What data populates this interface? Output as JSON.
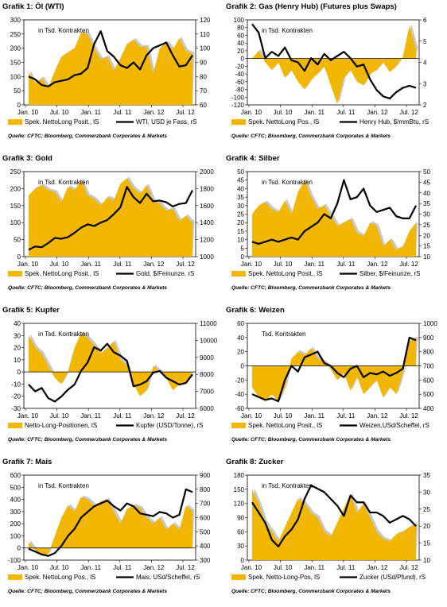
{
  "colors": {
    "fill": "#F2B705",
    "grey": "#C8C8C8",
    "line": "#000000"
  },
  "chart_data": [
    {
      "type": "area",
      "title_prefix": "Grafik 1:",
      "title": "Öl (WTI)",
      "inner_label": "in Tsd. Kontrakten",
      "x_ticks": [
        "Jan. 10",
        "Jul. 10",
        "Jan. 11",
        "Jul. 11",
        "Jan. 12",
        "Jul. 12"
      ],
      "ylim_left": [
        0,
        300
      ],
      "yticks_left": [
        0,
        50,
        100,
        150,
        200,
        250,
        300
      ],
      "ylim_right": [
        60,
        120
      ],
      "yticks_right": [
        60,
        70,
        80,
        90,
        100,
        110,
        120
      ],
      "series": [
        {
          "name": "Spek. NettoLong Posit., lS",
          "axis": "left",
          "values": [
            115,
            75,
            95,
            60,
            120,
            170,
            185,
            200,
            255,
            250,
            200,
            160,
            170,
            120,
            165,
            215,
            230,
            205,
            205,
            110,
            200,
            220,
            195,
            235,
            190,
            180
          ]
        },
        {
          "name": "WTI, USD je Fass, rS",
          "axis": "right",
          "values": [
            80,
            78,
            74,
            73,
            76,
            77,
            78,
            81,
            82,
            86,
            103,
            112,
            98,
            94,
            88,
            86,
            90,
            85,
            95,
            100,
            102,
            104,
            95,
            87,
            88,
            95
          ]
        }
      ],
      "source": "Quelle: CFTC; Bloomberg, Commerzbank Corporates & Markets"
    },
    {
      "type": "area",
      "title_prefix": "Grafik 2:",
      "title": "Gas (Henry Hub) (Futures plus Swaps)",
      "inner_label": "in Tsd. Kontrakten",
      "x_ticks": [
        "Jan. 10",
        "Jul. 10",
        "Jan. 11",
        "Jul. 11",
        "Jan. 12",
        "Jul. 12"
      ],
      "ylim_left": [
        -120,
        100
      ],
      "yticks_left": [
        -120,
        -100,
        -80,
        -60,
        -40,
        -20,
        0,
        20,
        40,
        60,
        80,
        100
      ],
      "ylim_right": [
        2,
        6
      ],
      "yticks_right": [
        2,
        3,
        4,
        5,
        6
      ],
      "series": [
        {
          "name": "Spek. NettoLong Pos., lS",
          "axis": "left",
          "values": [
            0,
            20,
            -10,
            -30,
            -10,
            -50,
            -30,
            -60,
            -80,
            -55,
            -40,
            -20,
            -70,
            -118,
            -50,
            -30,
            -60,
            -70,
            -40,
            -30,
            -10,
            -35,
            -20,
            5,
            85,
            25
          ]
        },
        {
          "name": "Henry Hub, $/mmBtu, rS",
          "axis": "right",
          "values": [
            5.8,
            5.4,
            4.2,
            4.5,
            4.3,
            4.7,
            4.1,
            4.0,
            3.6,
            4.2,
            3.9,
            4.4,
            4.1,
            4.3,
            4.5,
            4.2,
            3.8,
            3.9,
            3.2,
            2.7,
            2.4,
            2.3,
            2.6,
            2.8,
            2.9,
            2.8
          ]
        }
      ],
      "source": "Quelle: CFTC; Bloomberg, Commerzbank Corporates & Markets"
    },
    {
      "type": "area",
      "title_prefix": "Grafik 3:",
      "title": "Gold",
      "inner_label": "in Tsd. Kontrakten",
      "x_ticks": [
        "Jan. 10",
        "Jul. 10",
        "Jan. 11",
        "Jul. 11",
        "Jan. 12",
        "Jul. 12"
      ],
      "ylim_left": [
        0,
        250
      ],
      "yticks_left": [
        0,
        50,
        100,
        150,
        200,
        250
      ],
      "ylim_right": [
        1000,
        2000
      ],
      "yticks_right": [
        1000,
        1200,
        1400,
        1600,
        1800,
        2000
      ],
      "series": [
        {
          "name": "Spek. NettoLong Posit., lS",
          "axis": "left",
          "values": [
            180,
            200,
            210,
            195,
            190,
            160,
            205,
            195,
            225,
            180,
            170,
            150,
            175,
            165,
            215,
            230,
            200,
            185,
            210,
            165,
            155,
            135,
            140,
            105,
            120,
            100
          ]
        },
        {
          "name": "Gold, $/Feinunze, rS",
          "axis": "right",
          "values": [
            1080,
            1120,
            1110,
            1160,
            1220,
            1210,
            1230,
            1280,
            1340,
            1380,
            1360,
            1400,
            1430,
            1500,
            1580,
            1820,
            1700,
            1630,
            1740,
            1650,
            1660,
            1640,
            1590,
            1620,
            1630,
            1780
          ]
        }
      ],
      "source": "Quelle: CFTC; Bloomberg, Commerzbank Corporates & Markets"
    },
    {
      "type": "area",
      "title_prefix": "Grafik 4:",
      "title": "Silber",
      "inner_label": "in Tsd. Kontrakten",
      "x_ticks": [
        "Jan. 10",
        "Jul. 10",
        "Jan. 11",
        "Jul. 11",
        "Jan. 12",
        "Jul. 12"
      ],
      "ylim_left": [
        0,
        50
      ],
      "yticks_left": [
        0,
        5,
        10,
        15,
        20,
        25,
        30,
        35,
        40,
        45,
        50
      ],
      "ylim_right": [
        10,
        50
      ],
      "yticks_right": [
        10,
        15,
        20,
        25,
        30,
        35,
        40,
        45,
        50
      ],
      "series": [
        {
          "name": "Spek. NettoLong Posit., lS",
          "axis": "left",
          "values": [
            25,
            30,
            32,
            28,
            26,
            33,
            25,
            38,
            45,
            35,
            28,
            30,
            24,
            18,
            20,
            22,
            14,
            12,
            20,
            18,
            6,
            10,
            4,
            6,
            15,
            20
          ]
        },
        {
          "name": "Silber, $/Feinunze, rS",
          "axis": "right",
          "values": [
            17,
            16,
            17,
            18,
            17,
            18,
            19,
            18,
            22,
            24,
            26,
            30,
            28,
            35,
            46,
            37,
            38,
            42,
            34,
            31,
            32,
            33,
            29,
            28,
            28,
            34
          ]
        }
      ],
      "source": "Quelle: CFTC; Bloomberg, Commerzbank Corporates & Markets"
    },
    {
      "type": "area",
      "title_prefix": "Grafik 5:",
      "title": "Kupfer",
      "inner_label": "in Tsd. Kontrakten",
      "x_ticks": [
        "Jan. 10",
        "Jul. 10",
        "Jan. 11",
        "Jul. 11",
        "Jan. 12",
        "Jul. 12"
      ],
      "ylim_left": [
        -30,
        40
      ],
      "yticks_left": [
        -30,
        -20,
        -10,
        0,
        10,
        20,
        30,
        40
      ],
      "ylim_right": [
        6000,
        11000
      ],
      "yticks_right": [
        6000,
        7000,
        8000,
        9000,
        10000,
        11000
      ],
      "series": [
        {
          "name": "Netto-Long-Positionen, lS",
          "axis": "left",
          "values": [
            30,
            20,
            15,
            5,
            -5,
            -10,
            0,
            20,
            32,
            28,
            22,
            15,
            20,
            25,
            10,
            5,
            -10,
            -20,
            -15,
            5,
            0,
            -5,
            -15,
            -10,
            -8,
            0
          ]
        },
        {
          "name": "Kupfer (USD/Tonne), rS",
          "axis": "right",
          "values": [
            7400,
            7000,
            7200,
            6600,
            6400,
            6700,
            7100,
            7400,
            8200,
            8700,
            9600,
            9400,
            9800,
            9300,
            9100,
            8800,
            7300,
            7400,
            7600,
            8100,
            8200,
            7800,
            7600,
            7400,
            7500,
            8000
          ]
        }
      ],
      "source": "Quelle: CFTC; Bloomberg, Commerzbank Corporates & Markets"
    },
    {
      "type": "area",
      "title_prefix": "Grafik 6:",
      "title": "Weizen",
      "inner_label": "Tsd. Kontrakten",
      "x_ticks": [
        "Jan. 10",
        "Jul. 10",
        "Jan. 11",
        "Jul. 11",
        "Jan. 12",
        "Jul. 12"
      ],
      "ylim_left": [
        -60,
        60
      ],
      "yticks_left": [
        -60,
        -40,
        -20,
        0,
        20,
        40,
        60
      ],
      "ylim_right": [
        400,
        1000
      ],
      "yticks_right": [
        400,
        500,
        600,
        700,
        800,
        900,
        1000
      ],
      "series": [
        {
          "name": "Spek. NettoLong Posit., lS",
          "axis": "left",
          "values": [
            -30,
            -45,
            -50,
            -40,
            -50,
            -30,
            10,
            20,
            15,
            25,
            10,
            5,
            -5,
            -20,
            -10,
            -35,
            -15,
            -40,
            -30,
            -20,
            -45,
            -30,
            -40,
            -10,
            35,
            40
          ]
        },
        {
          "name": "Weizen,USd/Scheffel, rS",
          "axis": "right",
          "values": [
            500,
            480,
            460,
            470,
            450,
            600,
            700,
            660,
            760,
            780,
            800,
            720,
            700,
            650,
            620,
            680,
            700,
            620,
            650,
            640,
            660,
            630,
            650,
            680,
            900,
            880
          ]
        }
      ],
      "source": "Quelle: CFTC; Bloomberg, Commerzbank Corporates & Markets"
    },
    {
      "type": "area",
      "title_prefix": "Grafik 7:",
      "title": "Mais",
      "inner_label": "in Tsd. Kontrakten",
      "x_ticks": [
        "Jan. 10",
        "Jul. 10",
        "Jan. 11",
        "Jul. 11",
        "Jan. 12",
        "Jul. 12"
      ],
      "ylim_left": [
        -100,
        600
      ],
      "yticks_left": [
        -100,
        0,
        100,
        200,
        300,
        400,
        500,
        600
      ],
      "ylim_right": [
        300,
        900
      ],
      "yticks_right": [
        300,
        400,
        500,
        600,
        700,
        800,
        900
      ],
      "series": [
        {
          "name": "Spek. NettoLong Pos., lS",
          "axis": "left",
          "values": [
            50,
            -20,
            -60,
            -50,
            100,
            250,
            350,
            300,
            420,
            400,
            350,
            380,
            400,
            300,
            200,
            320,
            350,
            330,
            250,
            200,
            250,
            150,
            200,
            150,
            350,
            300
          ]
        },
        {
          "name": "Mais, USd/Scheffel, rS",
          "axis": "right",
          "values": [
            380,
            360,
            340,
            330,
            350,
            400,
            470,
            520,
            600,
            640,
            680,
            700,
            720,
            680,
            650,
            700,
            680,
            630,
            620,
            610,
            640,
            630,
            600,
            620,
            800,
            780
          ]
        }
      ],
      "source": "Quelle: CFTC; Bloomberg, Commerzbank Corporates & Markets"
    },
    {
      "type": "area",
      "title_prefix": "Grafik 8:",
      "title": "Zucker",
      "inner_label": "in Tsd. Kontrakten",
      "x_ticks": [
        "Jan. 10",
        "Jul. 10",
        "Jan. 11",
        "Jul. 11",
        "Jan. 12",
        "Jul. 12"
      ],
      "ylim_left": [
        0,
        180
      ],
      "yticks_left": [
        0,
        30,
        60,
        90,
        120,
        150,
        180
      ],
      "ylim_right": [
        10,
        35
      ],
      "yticks_right": [
        10,
        15,
        20,
        25,
        30,
        35
      ],
      "series": [
        {
          "name": "Spek. Netto-Long-Pos, lS",
          "axis": "left",
          "values": [
            150,
            120,
            80,
            60,
            40,
            70,
            100,
            130,
            120,
            100,
            90,
            60,
            50,
            80,
            110,
            140,
            100,
            120,
            90,
            60,
            45,
            40,
            55,
            60,
            70,
            75
          ]
        },
        {
          "name": "Zucker (USd/Pfund), rS",
          "axis": "right",
          "values": [
            27,
            24,
            21,
            16,
            14,
            17,
            19,
            22,
            28,
            32,
            31,
            30,
            28,
            26,
            23,
            29,
            27,
            27,
            24,
            24,
            23,
            21,
            22,
            23,
            22,
            20
          ]
        }
      ],
      "source": "Quelle: CFTC; Bloomberg, Commerzbank Corporates & Markets"
    }
  ]
}
